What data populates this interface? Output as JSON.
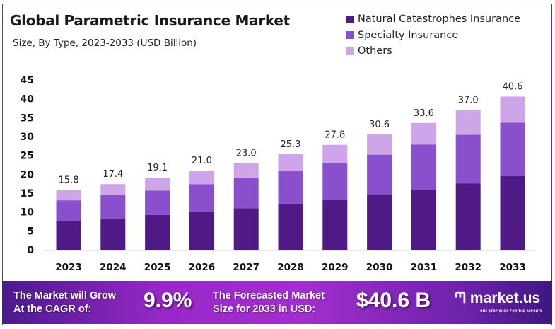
{
  "chart_data": {
    "type": "bar",
    "stacked": true,
    "title": "Global Parametric Insurance Market",
    "subtitle": "Size, By Type, 2023-2033 (USD Billion)",
    "categories": [
      "2023",
      "2024",
      "2025",
      "2026",
      "2027",
      "2028",
      "2029",
      "2030",
      "2031",
      "2032",
      "2033"
    ],
    "series": [
      {
        "name": "Natural Catastrophes Insurance",
        "color": "#4f1a86",
        "values": [
          7.5,
          8.2,
          9.2,
          10.1,
          11.0,
          12.2,
          13.3,
          14.7,
          16.0,
          17.6,
          19.5
        ]
      },
      {
        "name": "Specialty Insurance",
        "color": "#8a4fcc",
        "values": [
          5.6,
          6.3,
          6.5,
          7.3,
          8.1,
          8.7,
          9.7,
          10.5,
          11.9,
          12.9,
          14.2
        ]
      },
      {
        "name": "Others",
        "color": "#cfa5ea",
        "values": [
          2.7,
          2.9,
          3.4,
          3.6,
          3.9,
          4.4,
          4.8,
          5.4,
          5.7,
          6.5,
          6.9
        ]
      }
    ],
    "totals": [
      "15.8",
      "17.4",
      "19.1",
      "21.0",
      "23.0",
      "25.3",
      "27.8",
      "30.6",
      "33.6",
      "37.0",
      "40.6"
    ],
    "yticks": [
      "0",
      "5",
      "10",
      "15",
      "20",
      "25",
      "30",
      "35",
      "40",
      "45"
    ],
    "ylim": [
      0,
      45
    ],
    "grid": false,
    "legend": "top-right"
  },
  "footer": {
    "cagr_label": [
      "The Market will Grow",
      "At the CAGR of:"
    ],
    "cagr_value": "9.9%",
    "forecast_label": [
      "The Forecasted Market",
      "Size for 2033 in USD:"
    ],
    "forecast_value": "$40.6 B",
    "logo": "market.us",
    "logo_tagline": "ONE STOP SHOP FOR THE REPORTS"
  }
}
